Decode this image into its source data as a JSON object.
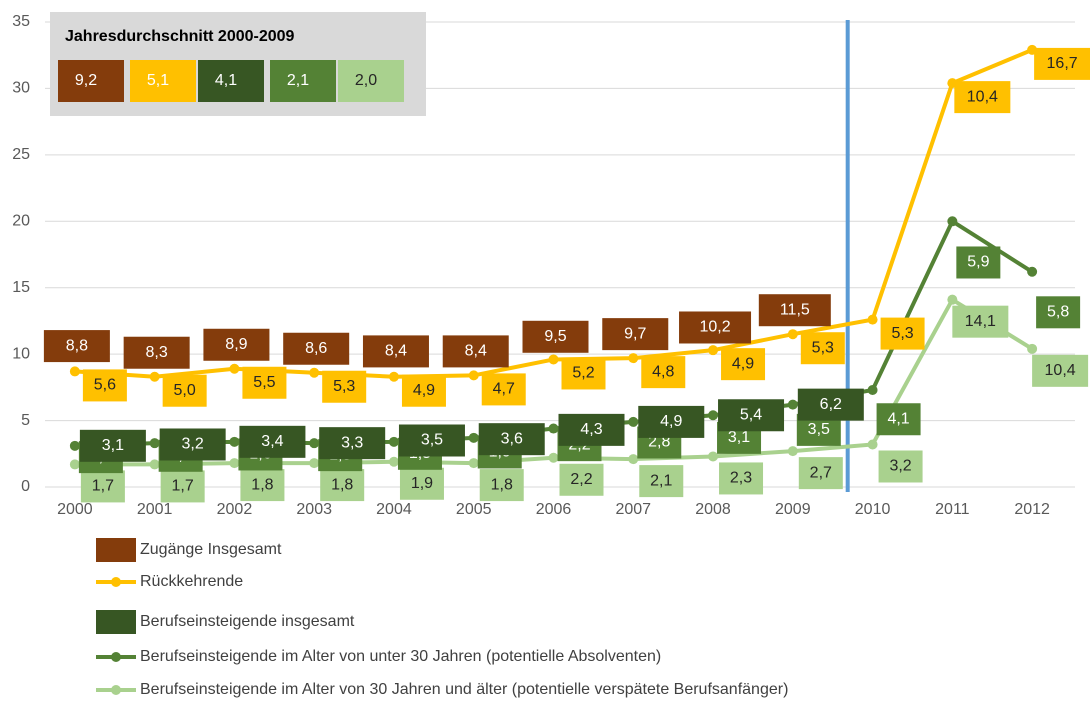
{
  "chart_data": {
    "type": "line",
    "stacked": true,
    "categories": [
      "2000",
      "2001",
      "2002",
      "2003",
      "2004",
      "2005",
      "2006",
      "2007",
      "2008",
      "2009",
      "2010",
      "2011",
      "2012"
    ],
    "ylim": [
      0,
      35
    ],
    "yticks": [
      0,
      5,
      10,
      15,
      20,
      25,
      30,
      35
    ],
    "grid": true,
    "divider_after": "2009",
    "series": [
      {
        "name": "Zugänge  Insgesamt",
        "style": "labels",
        "color": "#843c0c",
        "values": [
          8.8,
          8.3,
          8.9,
          8.6,
          8.4,
          8.4,
          9.5,
          9.7,
          10.2,
          11.5,
          null,
          null,
          null
        ],
        "value_labels": [
          "8,8",
          "8,3",
          "8,9",
          "8,6",
          "8,4",
          "8,4",
          "9,5",
          "9,7",
          "10,2",
          "11,5",
          null,
          null,
          null
        ]
      },
      {
        "name": "Rückkehrende",
        "style": "line",
        "color": "#ffc000",
        "values": [
          5.6,
          5.0,
          5.5,
          5.3,
          4.9,
          4.7,
          5.2,
          4.8,
          4.9,
          5.3,
          5.3,
          10.4,
          16.7
        ],
        "value_labels": [
          "5,6",
          "5,0",
          "5,5",
          "5,3",
          "4,9",
          "4,7",
          "5,2",
          "4,8",
          "4,9",
          "5,3",
          "5,3",
          "10,4",
          "16,7"
        ]
      },
      {
        "name": "Berufseinsteigende insgesamt",
        "style": "labels",
        "color": "#375623",
        "values": [
          3.1,
          3.2,
          3.4,
          3.3,
          3.5,
          3.6,
          4.3,
          4.9,
          5.4,
          6.2,
          null,
          null,
          null
        ],
        "value_labels": [
          "3,1",
          "3,2",
          "3,4",
          "3,3",
          "3,5",
          "3,6",
          "4,3",
          "4,9",
          "5,4",
          "6,2",
          null,
          null,
          null
        ]
      },
      {
        "name": "Berufseinsteigende im Alter von unter 30 Jahren (potentielle Absolventen)",
        "style": "line",
        "color": "#548235",
        "values": [
          1.4,
          1.6,
          1.6,
          1.5,
          1.5,
          1.9,
          2.2,
          2.8,
          3.1,
          3.5,
          4.1,
          5.9,
          5.8
        ],
        "value_labels": [
          "1,4",
          "1,6",
          "1,6",
          "1,5",
          "1,5",
          "1,9",
          "2,2",
          "2,8",
          "3,1",
          "3,5",
          "4,1",
          "5,9",
          "5,8"
        ]
      },
      {
        "name": "Berufseinsteigende im Alter von 30 Jahren und älter (potentielle verspätete Berufsanfänger)",
        "style": "line",
        "color": "#a9d18e",
        "values": [
          1.7,
          1.7,
          1.8,
          1.8,
          1.9,
          1.8,
          2.2,
          2.1,
          2.3,
          2.7,
          3.2,
          14.1,
          10.4
        ],
        "value_labels": [
          "1,7",
          "1,7",
          "1,8",
          "1,8",
          "1,9",
          "1,8",
          "2,2",
          "2,1",
          "2,3",
          "2,7",
          "3,2",
          "14,1",
          "10,4"
        ]
      }
    ],
    "inset": {
      "title": "Jahresdurchschnitt 2000-2009",
      "values": [
        9.2,
        5.1,
        4.1,
        2.1,
        2.0
      ],
      "value_labels": [
        "9,2",
        "5,1",
        "4,1",
        "2,1",
        "2,0"
      ],
      "colors": [
        "#843c0c",
        "#ffc000",
        "#375623",
        "#548235",
        "#a9d18e"
      ]
    }
  }
}
